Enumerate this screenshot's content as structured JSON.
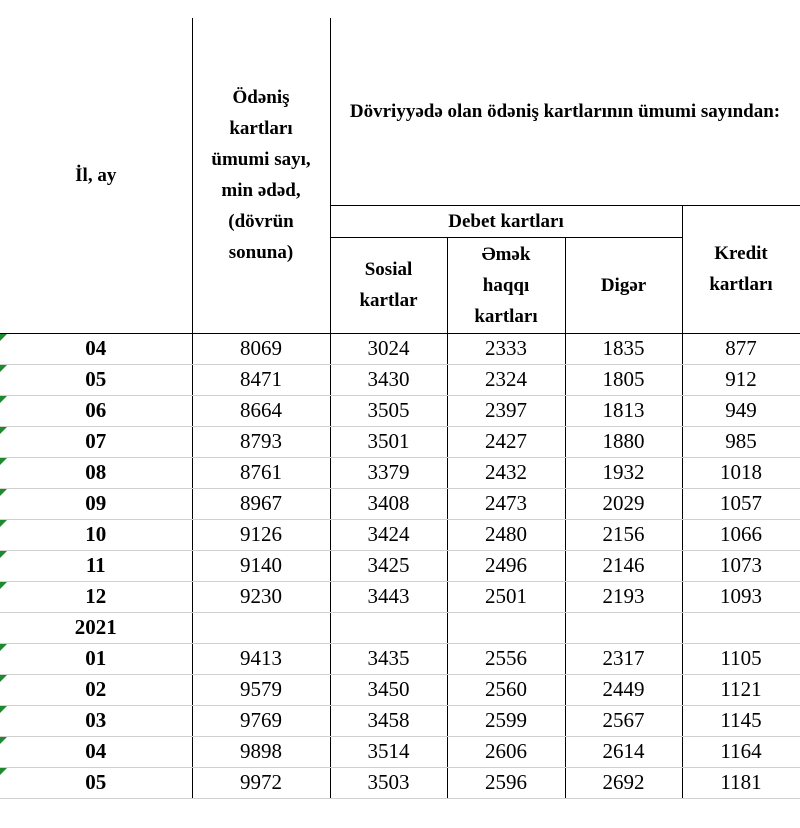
{
  "table": {
    "header": {
      "year_month": "İl, ay",
      "total": "Ödəniş kartları ümumi sayı, min ədəd, (dövrün sonuna)",
      "group": "Dövriyyədə olan ödəniş kartlarının ümumi sayından:",
      "debit": "Debet kartları",
      "social": "Sosial kartlar",
      "salary": "Əmək haqqı kartları",
      "other": "Digər",
      "credit": "Kredit kartları"
    },
    "rows": [
      [
        "04",
        8069,
        3024,
        2333,
        1835,
        877
      ],
      [
        "05",
        8471,
        3430,
        2324,
        1805,
        912
      ],
      [
        "06",
        8664,
        3505,
        2397,
        1813,
        949
      ],
      [
        "07",
        8793,
        3501,
        2427,
        1880,
        985
      ],
      [
        "08",
        8761,
        3379,
        2432,
        1932,
        1018
      ],
      [
        "09",
        8967,
        3408,
        2473,
        2029,
        1057
      ],
      [
        "10",
        9126,
        3424,
        2480,
        2156,
        1066
      ],
      [
        "11",
        9140,
        3425,
        2496,
        2146,
        1073
      ],
      [
        "12",
        9230,
        3443,
        2501,
        2193,
        1093
      ],
      [
        "2021"
      ],
      [
        "01",
        9413,
        3435,
        2556,
        2317,
        1105
      ],
      [
        "02",
        9579,
        3450,
        2560,
        2449,
        1121
      ],
      [
        "03",
        9769,
        3458,
        2599,
        2567,
        1145
      ],
      [
        "04",
        9898,
        3514,
        2606,
        2614,
        1164
      ],
      [
        "05",
        9972,
        3503,
        2596,
        2692,
        1181
      ]
    ]
  }
}
